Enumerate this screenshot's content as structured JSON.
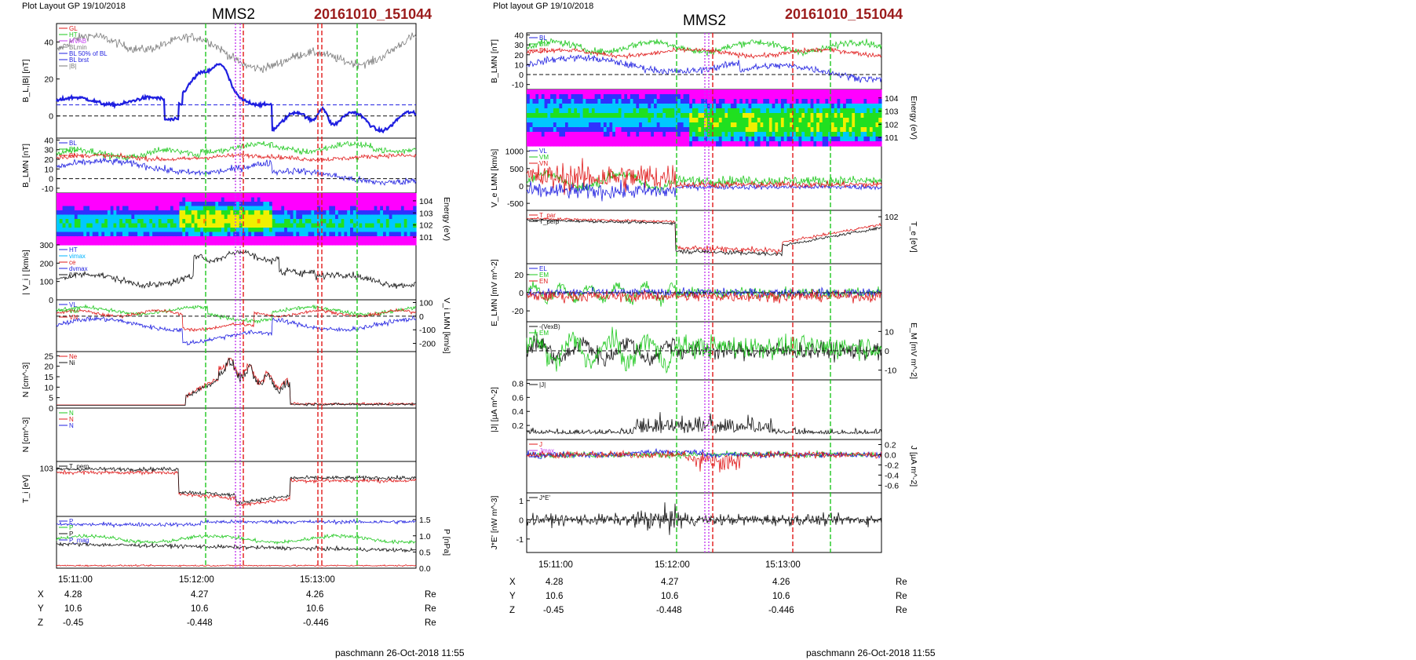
{
  "left": {
    "layout_label": "Plot Layout GP 19/10/2018",
    "title": "MMS2",
    "date_label": "20161010_151044",
    "footer": "paschmann 26-Oct-2018 11:55",
    "time_ticks": [
      "15:11:00",
      "15:12:00",
      "15:13:00"
    ],
    "ephemeris": [
      {
        "coord": "X",
        "values": [
          "4.28",
          "4.27",
          "4.26"
        ],
        "unit": "Re"
      },
      {
        "coord": "Y",
        "values": [
          "10.6",
          "10.6",
          "10.6"
        ],
        "unit": "Re"
      },
      {
        "coord": "Z",
        "values": [
          "-0.45",
          "-0.448",
          "-0.446"
        ],
        "unit": "Re"
      }
    ]
  },
  "right": {
    "layout_label": "Plot layout GP 19/10/2018",
    "title": "MMS2",
    "date_label": "20161010_151044",
    "footer": "paschmann 26-Oct-2018 11:55",
    "time_ticks": [
      "15:11:00",
      "15:12:00",
      "15:13:00"
    ],
    "ephemeris": [
      {
        "coord": "X",
        "values": [
          "4.28",
          "4.27",
          "4.26"
        ],
        "unit": "Re"
      },
      {
        "coord": "Y",
        "values": [
          "10.6",
          "10.6",
          "10.6"
        ],
        "unit": "Re"
      },
      {
        "coord": "Z",
        "values": [
          "-0.45",
          "-0.448",
          "-0.446"
        ],
        "unit": "Re"
      }
    ]
  },
  "colors": {
    "blue": "#1f1fe0",
    "red": "#e01a1a",
    "green": "#1ec81e",
    "black": "#111111",
    "gray": "#7a7a7a",
    "magenta": "#c43cf0",
    "date": "#9b1b1b"
  },
  "chart_data": [
    {
      "type": "line",
      "figure": "left",
      "panel": "BL_|B|",
      "ylabel": "B_L,|B| [nT]",
      "yticks": [
        "40",
        "20",
        "0"
      ],
      "ylim": [
        -12,
        50
      ],
      "legend": [
        "GL",
        "HT",
        "MVAB",
        "BLmin",
        "BL 50% of BL",
        "BL brst",
        "|B|"
      ],
      "hlines": [
        {
          "y": 6,
          "style": "dashed",
          "color": "blue"
        },
        {
          "y": 0,
          "style": "dashed",
          "color": "black"
        }
      ]
    },
    {
      "type": "line",
      "figure": "left",
      "panel": "B_LMN",
      "ylabel": "B_LMN [nT]",
      "yticks": [
        "40",
        "30",
        "20",
        "10",
        "0",
        "-10"
      ],
      "ylim": [
        -15,
        42
      ],
      "legend": [
        "BL",
        "BM",
        "BN"
      ]
    },
    {
      "type": "heatmap",
      "figure": "left",
      "panel": "ion_spectrogram",
      "ylabel": "Energy (eV)",
      "yticks": [
        "10^4",
        "10^3",
        "10^2",
        "10^1"
      ]
    },
    {
      "type": "line",
      "figure": "left",
      "panel": "Vi",
      "ylabel": "| V_i | [km/s]",
      "yticks": [
        "300",
        "200",
        "100",
        "0"
      ],
      "ylim": [
        0,
        300
      ],
      "legend": [
        "HT",
        "vimax",
        "ce",
        "dvmax",
        "|V|"
      ]
    },
    {
      "type": "line",
      "figure": "left",
      "panel": "Vi_LMN",
      "ylabel": "V_i LMN [km/s]",
      "yticks": [
        "100",
        "0",
        "-100",
        "-200"
      ],
      "ylim": [
        -260,
        120
      ],
      "legend": [
        "VL",
        "VM",
        "VN"
      ]
    },
    {
      "type": "line",
      "figure": "left",
      "panel": "N",
      "ylabel": "N [cm^-3]",
      "yticks": [
        "25",
        "20",
        "15",
        "10",
        "5",
        "0"
      ],
      "ylim": [
        0,
        27
      ],
      "legend": [
        "Ne",
        "Ni"
      ]
    },
    {
      "type": "line",
      "figure": "left",
      "panel": "N_empty",
      "ylabel": "N [cm^-3]",
      "legend": [
        "N",
        "N",
        "N"
      ]
    },
    {
      "type": "line",
      "figure": "left",
      "panel": "Ti",
      "ylabel": "T_i [eV]",
      "yticks": [
        "10^3"
      ],
      "legend": [
        "T_perp"
      ]
    },
    {
      "type": "line",
      "figure": "left",
      "panel": "P",
      "ylabel": "P [nPa]",
      "yticks": [
        "1.5",
        "1.0",
        "0.5",
        "0.0"
      ],
      "ylim": [
        0,
        1.6
      ],
      "legend": [
        "P",
        "P",
        "P",
        "P_mag"
      ]
    },
    {
      "type": "line",
      "figure": "right",
      "panel": "B_LMN",
      "ylabel": "B_LMN [nT]",
      "yticks": [
        "40",
        "30",
        "20",
        "10",
        "0",
        "-10"
      ],
      "ylim": [
        -15,
        42
      ],
      "legend": [
        "BL",
        "BM",
        "BN"
      ]
    },
    {
      "type": "heatmap",
      "figure": "right",
      "panel": "electron_spectrogram",
      "ylabel": "Energy (eV)",
      "yticks": [
        "10^4",
        "10^3",
        "10^2",
        "10^1"
      ]
    },
    {
      "type": "line",
      "figure": "right",
      "panel": "Ve_LMN",
      "ylabel": "V_e LMN [km/s]",
      "yticks": [
        "1000",
        "500",
        "0",
        "-500"
      ],
      "ylim": [
        -700,
        1150
      ],
      "legend": [
        "VL",
        "VM",
        "VN"
      ]
    },
    {
      "type": "line",
      "figure": "right",
      "panel": "Te",
      "ylabel": "T_e [eV]",
      "yticks": [
        "10^2"
      ],
      "legend": [
        "T_par",
        "T_perp"
      ]
    },
    {
      "type": "line",
      "figure": "right",
      "panel": "E_LMN",
      "ylabel": "E_LMN [mV m^-2]",
      "yticks": [
        "20",
        "0",
        "-20"
      ],
      "ylim": [
        -32,
        32
      ],
      "legend": [
        "EL",
        "EM",
        "EN"
      ]
    },
    {
      "type": "line",
      "figure": "right",
      "panel": "E_M",
      "ylabel": "E_M [mV m^-2]",
      "yticks": [
        "10",
        "0",
        "-10"
      ],
      "ylim": [
        -15,
        15
      ],
      "legend": [
        "-(VexB)",
        "EM"
      ]
    },
    {
      "type": "line",
      "figure": "right",
      "panel": "J",
      "ylabel": "|J| [µA m^-2]",
      "yticks": [
        "0.8",
        "0.6",
        "0.4",
        "0.2"
      ],
      "ylim": [
        0,
        0.85
      ],
      "legend": [
        "|J|"
      ]
    },
    {
      "type": "line",
      "figure": "right",
      "panel": "J_LMN",
      "ylabel": "J [µA m^-2]",
      "yticks": [
        "0.2",
        "0.0",
        "-0.2",
        "-0.4",
        "-0.6"
      ],
      "ylim": [
        -0.75,
        0.3
      ],
      "legend": [
        "J",
        "Jmax",
        "J"
      ]
    },
    {
      "type": "line",
      "figure": "right",
      "panel": "JdotE",
      "ylabel": "J*E' [nW m^-3]",
      "yticks": [
        "1",
        "0",
        "-1"
      ],
      "ylim": [
        -1.7,
        1.4
      ],
      "legend": [
        "J*E'"
      ]
    }
  ]
}
